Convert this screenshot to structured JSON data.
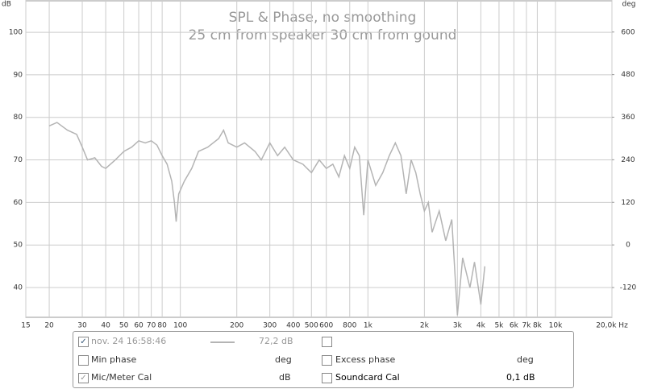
{
  "chart_data": {
    "type": "line",
    "title": "SPL & Phase, no smoothing",
    "subtitle": "25 cm from speaker 30 cm from gound",
    "y_label": "dB",
    "y2_label": "deg",
    "x_scale": "log",
    "grid": true,
    "xlim": [
      15,
      20000
    ],
    "ylim": [
      33,
      107.4
    ],
    "y2lim": [
      -204,
      688
    ],
    "xticks": [
      15,
      20,
      30,
      40,
      50,
      60,
      70,
      80,
      100,
      200,
      300,
      400,
      500,
      600,
      800,
      {
        "value": 1000,
        "label": "1k"
      },
      {
        "value": 2000,
        "label": "2k"
      },
      {
        "value": 3000,
        "label": "3k"
      },
      {
        "value": 4000,
        "label": "4k"
      },
      {
        "value": 5000,
        "label": "5k"
      },
      {
        "value": 6000,
        "label": "6k"
      },
      {
        "value": 7000,
        "label": "7k"
      },
      {
        "value": 8000,
        "label": "8k"
      },
      {
        "value": 10000,
        "label": "10k"
      },
      {
        "value": 20000,
        "label": "20,0k Hz"
      }
    ],
    "yticks": [
      40,
      50,
      60,
      70,
      80,
      90,
      100
    ],
    "y2ticks": [
      -120,
      0,
      120,
      240,
      360,
      480,
      600
    ],
    "series": [
      {
        "name": "nov. 24 16:58:46",
        "color": "#b4b4b4",
        "x": [
          20,
          22,
          25,
          28,
          30,
          32,
          35,
          38,
          40,
          45,
          50,
          55,
          60,
          65,
          70,
          75,
          80,
          85,
          90,
          93,
          95,
          98,
          105,
          115,
          125,
          140,
          160,
          170,
          180,
          200,
          220,
          250,
          270,
          300,
          330,
          360,
          400,
          450,
          500,
          550,
          600,
          650,
          700,
          750,
          800,
          850,
          900,
          950,
          1000,
          1100,
          1200,
          1300,
          1400,
          1500,
          1600,
          1700,
          1800,
          1900,
          2000,
          2100,
          2200,
          2400,
          2600,
          2800,
          3000,
          3200,
          3500,
          3700,
          4000,
          4200
        ],
        "values": [
          78,
          78.8,
          77,
          76,
          73,
          70,
          70.5,
          68.5,
          68,
          70,
          72,
          73,
          74.5,
          74,
          74.5,
          73.5,
          71,
          69,
          65,
          60,
          55.5,
          62,
          65,
          68,
          72,
          73,
          75,
          77,
          74,
          73,
          74,
          72,
          70,
          74,
          71,
          73,
          70,
          69,
          67,
          70,
          68,
          69,
          66,
          71,
          68,
          73,
          71,
          57,
          70,
          64,
          67,
          71,
          74,
          71,
          62,
          70,
          67,
          62,
          58,
          60,
          53,
          58,
          51,
          56,
          33.5,
          47,
          40,
          46,
          36,
          45
        ]
      }
    ]
  },
  "panel": {
    "rows": [
      [
        "nov. 24 16:58:46",
        "72,2 dB"
      ],
      [
        "Min phase",
        "deg",
        "Excess phase",
        "deg"
      ],
      [
        "Mic/Meter Cal",
        "dB",
        "Soundcard Cal",
        "0,1 dB"
      ]
    ]
  }
}
